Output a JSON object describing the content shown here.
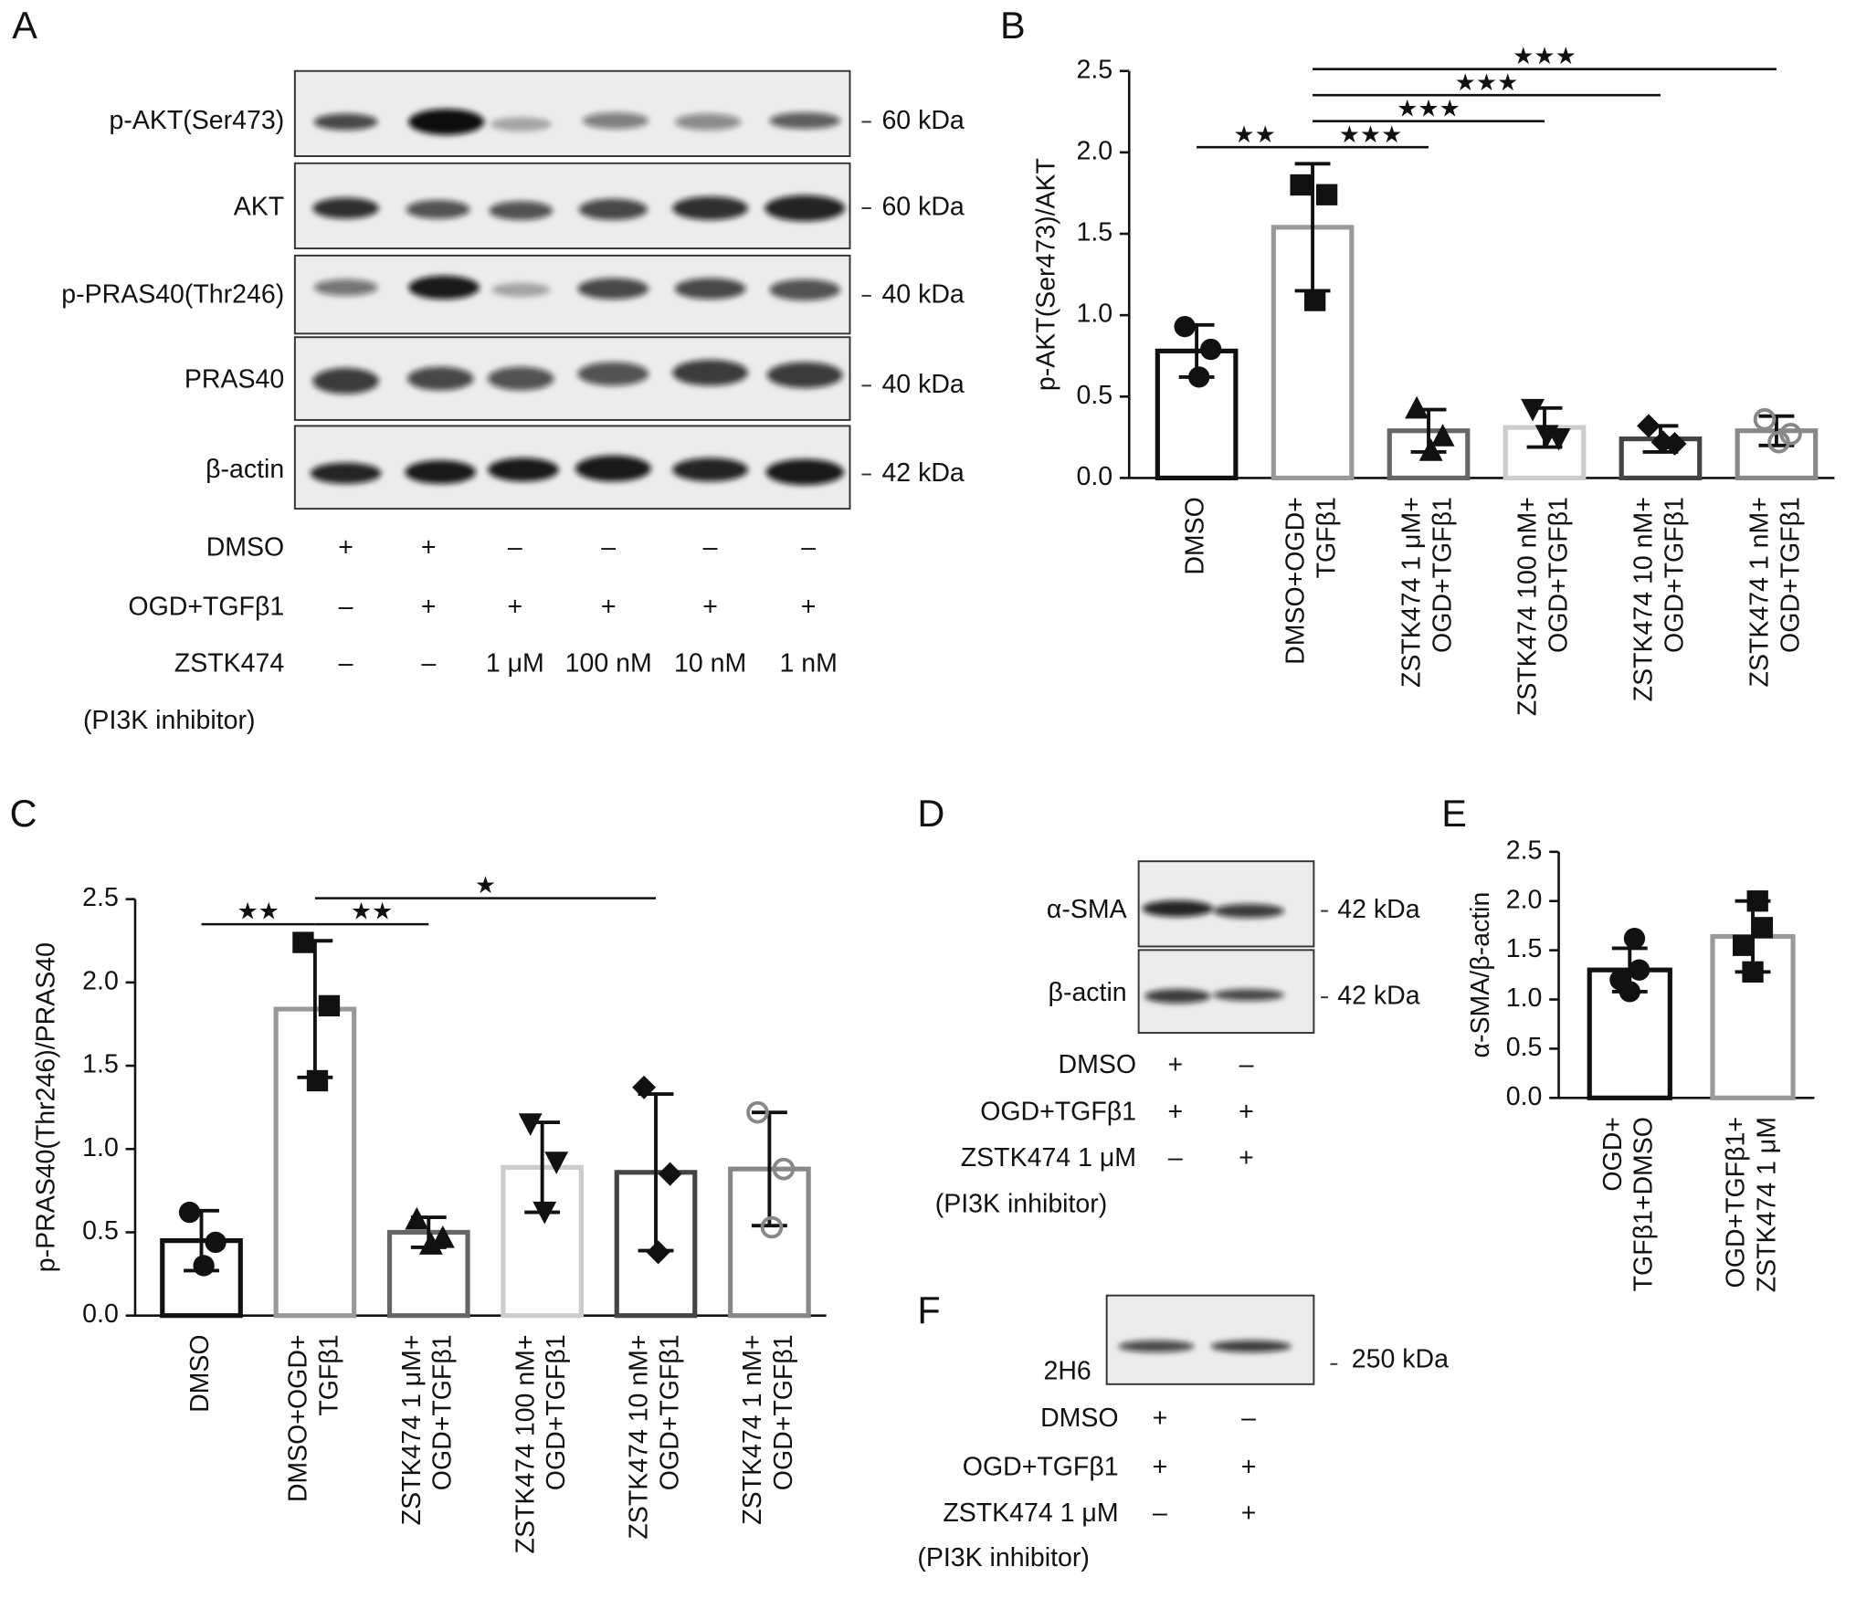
{
  "panel_labels": [
    "A",
    "B",
    "C",
    "D",
    "E",
    "F"
  ],
  "blot_a": {
    "proteins": [
      "p-AKT(Ser473)",
      "AKT",
      "p-PRAS40(Thr246)",
      "PRAS40",
      "β-actin"
    ],
    "sizes": [
      "60 kDa",
      "60 kDa",
      "40 kDa",
      "40 kDa",
      "42 kDa"
    ],
    "conditions": [
      {
        "name": "DMSO",
        "lanes": [
          "+",
          "+",
          "–",
          "–",
          "–",
          "–"
        ]
      },
      {
        "name": "OGD+TGFβ1",
        "lanes": [
          "–",
          "+",
          "+",
          "+",
          "+",
          "+"
        ]
      },
      {
        "name": "ZSTK474",
        "lanes": [
          "–",
          "–",
          "1 μM",
          "100 nM",
          "10 nM",
          "1 nM"
        ]
      }
    ],
    "note": "(PI3K inhibitor)"
  },
  "blot_d": {
    "proteins": [
      "α-SMA",
      "β-actin"
    ],
    "sizes": [
      "42 kDa",
      "42 kDa"
    ],
    "conditions": [
      {
        "name": "DMSO",
        "lanes": [
          "+",
          "–"
        ]
      },
      {
        "name": "OGD+TGFβ1",
        "lanes": [
          "+",
          "+"
        ]
      },
      {
        "name": "ZSTK474 1 μM",
        "lanes": [
          "–",
          "+"
        ]
      }
    ],
    "note": "(PI3K inhibitor)"
  },
  "blot_f": {
    "proteins": [
      "2H6"
    ],
    "sizes": [
      "250 kDa"
    ],
    "conditions": [
      {
        "name": "DMSO",
        "lanes": [
          "+",
          "–"
        ]
      },
      {
        "name": "OGD+TGFβ1",
        "lanes": [
          "+",
          "+"
        ]
      },
      {
        "name": "ZSTK474 1 μM",
        "lanes": [
          "–",
          "+"
        ]
      }
    ],
    "note": "(PI3K inhibitor)"
  },
  "chart_data": [
    {
      "type": "bar",
      "ylabel": "p-AKT(Ser473)/AKT",
      "categories": [
        [
          "DMSO"
        ],
        [
          "DMSO+OGD+",
          "TGFβ1"
        ],
        [
          "ZSTK474 1 μM+",
          "OGD+TGFβ1"
        ],
        [
          "ZSTK474 100 nM+",
          "OGD+TGFβ1"
        ],
        [
          "ZSTK474 10 nM+",
          "OGD+TGFβ1"
        ],
        [
          "ZSTK474 1 nM+",
          "OGD+TGFβ1"
        ]
      ],
      "values": [
        0.78,
        1.54,
        0.29,
        0.31,
        0.24,
        0.29
      ],
      "errors": [
        0.16,
        0.39,
        0.13,
        0.12,
        0.08,
        0.09
      ],
      "points": [
        [
          0.93,
          0.79,
          0.62
        ],
        [
          1.8,
          1.74,
          1.09
        ],
        [
          0.43,
          0.26,
          0.17
        ],
        [
          0.42,
          0.24,
          0.26
        ],
        [
          0.32,
          0.21,
          0.22
        ],
        [
          0.36,
          0.27,
          0.22
        ]
      ],
      "colors": [
        "#111111",
        "#999999",
        "#666666",
        "#cccccc",
        "#444444",
        "#888888"
      ],
      "markers": [
        "circle",
        "square",
        "triangle-up",
        "triangle-down",
        "diamond",
        "circle-open"
      ],
      "ylim": [
        0,
        2.5
      ],
      "yticks": [
        {
          "value": 0,
          "label": "0.0"
        },
        {
          "value": 0.5,
          "label": "0.5"
        },
        {
          "value": 1,
          "label": "1.0"
        },
        {
          "value": 1.5,
          "label": "1.5"
        },
        {
          "value": 2,
          "label": "2.0"
        },
        {
          "value": 2.5,
          "label": "2.5"
        }
      ],
      "significance": [
        {
          "text": "★★",
          "pair": [
            0,
            1
          ]
        },
        {
          "text": "★★★",
          "pair": [
            1,
            2
          ]
        },
        {
          "text": "★★★",
          "pair": [
            1,
            3
          ]
        },
        {
          "text": "★★★",
          "pair": [
            1,
            4
          ]
        },
        {
          "text": "★★★",
          "pair": [
            1,
            5
          ]
        }
      ]
    },
    {
      "type": "bar",
      "ylabel": "p-PRAS40(Thr246)/PRAS40",
      "categories": [
        [
          "DMSO"
        ],
        [
          "DMSO+OGD+",
          "TGFβ1"
        ],
        [
          "ZSTK474 1 μM+",
          "OGD+TGFβ1"
        ],
        [
          "ZSTK474 100 nM+",
          "OGD+TGFβ1"
        ],
        [
          "ZSTK474 10 nM+",
          "OGD+TGFβ1"
        ],
        [
          "ZSTK474 1 nM+",
          "OGD+TGFβ1"
        ]
      ],
      "values": [
        0.45,
        1.84,
        0.5,
        0.89,
        0.86,
        0.88
      ],
      "errors": [
        0.18,
        0.41,
        0.09,
        0.27,
        0.47,
        0.34
      ],
      "points": [
        [
          0.62,
          0.44,
          0.3
        ],
        [
          2.24,
          1.86,
          1.41
        ],
        [
          0.58,
          0.47,
          0.43
        ],
        [
          1.15,
          0.92,
          0.62
        ],
        [
          1.37,
          0.85,
          0.38
        ],
        [
          1.22,
          0.88,
          0.53
        ]
      ],
      "colors": [
        "#111111",
        "#999999",
        "#666666",
        "#cccccc",
        "#444444",
        "#888888"
      ],
      "markers": [
        "circle",
        "square",
        "triangle-up",
        "triangle-down",
        "diamond",
        "circle-open"
      ],
      "ylim": [
        0,
        2.5
      ],
      "yticks": [
        {
          "value": 0,
          "label": "0.0"
        },
        {
          "value": 0.5,
          "label": "0.5"
        },
        {
          "value": 1,
          "label": "1.0"
        },
        {
          "value": 1.5,
          "label": "1.5"
        },
        {
          "value": 2,
          "label": "2.0"
        },
        {
          "value": 2.5,
          "label": "2.5"
        }
      ],
      "significance": [
        {
          "text": "★★",
          "pair": [
            0,
            1
          ]
        },
        {
          "text": "★★",
          "pair": [
            1,
            2
          ]
        },
        {
          "text": "★",
          "pair": [
            1,
            4
          ]
        }
      ]
    },
    {
      "type": "bar",
      "ylabel": "α-SMA/β-actin",
      "categories": [
        [
          "OGD+",
          "TGFβ1+DMSO"
        ],
        [
          "OGD+TGFβ1+",
          "ZSTK474 1 μM"
        ]
      ],
      "values": [
        1.3,
        1.64
      ],
      "errors": [
        0.22,
        0.36
      ],
      "points": [
        [
          1.62,
          1.3,
          1.2,
          1.08
        ],
        [
          2.0,
          1.73,
          1.55,
          1.28
        ]
      ],
      "colors": [
        "#111111",
        "#999999"
      ],
      "markers": [
        "circle",
        "square"
      ],
      "ylim": [
        0,
        2.5
      ],
      "yticks": [
        {
          "value": 0,
          "label": "0.0"
        },
        {
          "value": 0.5,
          "label": "0.5"
        },
        {
          "value": 1,
          "label": "1.0"
        },
        {
          "value": 1.5,
          "label": "1.5"
        },
        {
          "value": 2,
          "label": "2.0"
        },
        {
          "value": 2.5,
          "label": "2.5"
        }
      ],
      "significance": []
    }
  ]
}
